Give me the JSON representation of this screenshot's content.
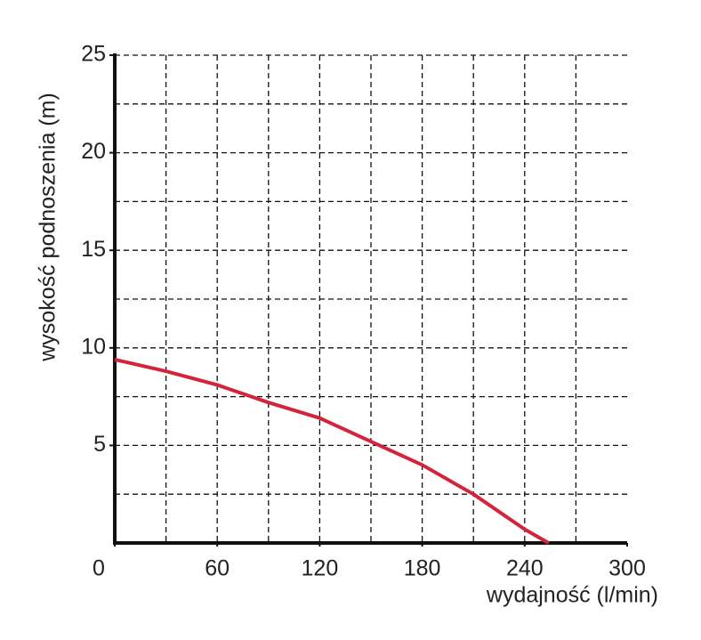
{
  "chart_data": {
    "type": "line",
    "xlabel": "wydajność (l/min)",
    "ylabel": "wysokość podnoszenia (m)",
    "x": [
      0,
      30,
      60,
      90,
      120,
      150,
      180,
      210,
      240,
      254
    ],
    "series": [
      {
        "name": null,
        "color": "#d3243b",
        "values": [
          9.4,
          8.8,
          8.1,
          7.2,
          6.4,
          5.2,
          4.0,
          2.5,
          0.7,
          0
        ]
      }
    ],
    "xlim": [
      0,
      300
    ],
    "ylim": [
      0,
      25
    ],
    "xticks": [
      0,
      60,
      120,
      180,
      240,
      300
    ],
    "yticks": [
      5,
      10,
      15,
      20,
      25
    ],
    "xgrid": [
      30,
      60,
      90,
      120,
      150,
      180,
      210,
      240,
      270
    ],
    "ygrid": [
      2.5,
      5,
      7.5,
      10,
      12.5,
      15,
      17.5,
      20,
      22.5,
      25
    ],
    "grid": true
  }
}
